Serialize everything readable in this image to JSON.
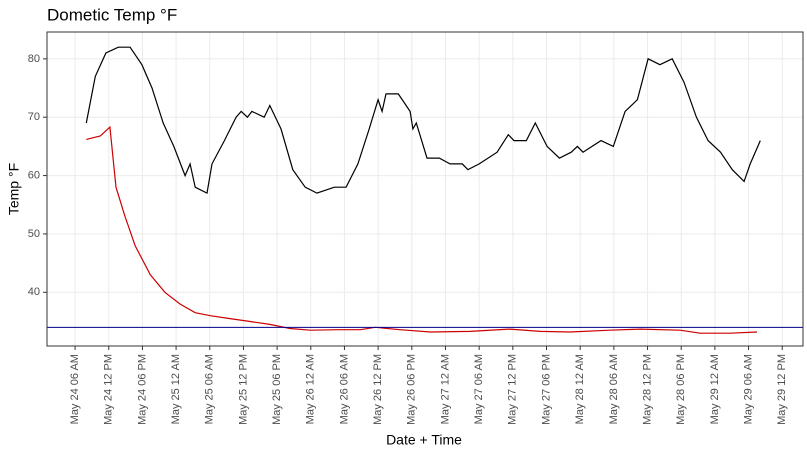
{
  "chart_data": {
    "type": "line",
    "title": "Dometic Temp °F",
    "x_label": "Date + Time",
    "y_label": "Temp °F",
    "xlim": [
      1.0,
      135.7
    ],
    "ylim": [
      30.8,
      84.6
    ],
    "xticks": [
      {
        "value": 6,
        "label": "May 24 06 AM"
      },
      {
        "value": 12,
        "label": "May 24 12 PM"
      },
      {
        "value": 18,
        "label": "May 24 06 PM"
      },
      {
        "value": 24,
        "label": "May 25 12 AM"
      },
      {
        "value": 30,
        "label": "May 25 06 AM"
      },
      {
        "value": 36,
        "label": "May 25 12 PM"
      },
      {
        "value": 42,
        "label": "May 25 06 PM"
      },
      {
        "value": 48,
        "label": "May 26 12 AM"
      },
      {
        "value": 54,
        "label": "May 26 06 AM"
      },
      {
        "value": 60,
        "label": "May 26 12 PM"
      },
      {
        "value": 66,
        "label": "May 26 06 PM"
      },
      {
        "value": 72,
        "label": "May 27 12 AM"
      },
      {
        "value": 78,
        "label": "May 27 06 AM"
      },
      {
        "value": 84,
        "label": "May 27 12 PM"
      },
      {
        "value": 90,
        "label": "May 27 06 PM"
      },
      {
        "value": 96,
        "label": "May 28 12 AM"
      },
      {
        "value": 102,
        "label": "May 28 06 AM"
      },
      {
        "value": 108,
        "label": "May 28 12 PM"
      },
      {
        "value": 114,
        "label": "May 28 06 PM"
      },
      {
        "value": 120,
        "label": "May 29 12 AM"
      },
      {
        "value": 126,
        "label": "May 29 06 AM"
      },
      {
        "value": 132,
        "label": "May 29 12 PM"
      }
    ],
    "yticks": [
      40,
      50,
      60,
      70,
      80
    ],
    "grid": true,
    "hline": {
      "value": 34,
      "color": "#00008b"
    },
    "series": [
      {
        "color": "#000000",
        "x": [
          8.0,
          9.6,
          11.5,
          13.7,
          15.8,
          17.9,
          19.7,
          21.7,
          23.6,
          25.6,
          26.5,
          27.4,
          29.5,
          30.4,
          32.6,
          34.7,
          35.6,
          36.7,
          37.5,
          39.7,
          40.7,
          42.7,
          44.8,
          47.0,
          49.1,
          52.2,
          54.3,
          56.4,
          58.4,
          60.0,
          60.7,
          61.4,
          63.6,
          65.7,
          66.2,
          66.8,
          68.7,
          70.9,
          72.8,
          75.0,
          76.0,
          78.0,
          81.2,
          83.2,
          84.2,
          86.4,
          88.0,
          90.1,
          92.3,
          94.4,
          95.5,
          96.5,
          99.7,
          101.9,
          104.0,
          106.2,
          108.1,
          110.2,
          112.4,
          114.5,
          116.7,
          118.8,
          121.0,
          123.1,
          125.2,
          126.3,
          128.1
        ],
        "values": [
          69,
          77,
          81,
          82,
          82,
          79,
          75,
          69,
          65,
          60,
          62,
          58,
          57,
          62,
          66,
          70,
          71,
          70,
          71,
          70,
          72,
          68,
          61,
          58,
          57,
          58,
          58,
          62,
          68,
          73,
          71,
          74,
          74,
          71,
          68,
          69,
          63,
          63,
          62,
          62,
          61,
          62,
          64,
          67,
          66,
          66,
          69,
          65,
          63,
          64,
          65,
          64,
          66,
          65,
          71,
          73,
          80,
          79,
          80,
          76,
          70,
          66,
          64,
          61,
          59,
          62,
          66
        ]
      },
      {
        "color": "#cc0000",
        "x": [
          8.0,
          10.5,
          12.2,
          13.3,
          14.9,
          16.7,
          19.4,
          22.0,
          24.7,
          27.4,
          30.1,
          33.6,
          37.2,
          40.7,
          44.3,
          47.9,
          53.2,
          56.8,
          59.5,
          63.9,
          69.3,
          76.4,
          83.5,
          88.9,
          94.2,
          101.3,
          106.7,
          113.8,
          117.4,
          122.7,
          127.5
        ],
        "values": [
          66.2,
          66.8,
          68.3,
          58,
          53,
          48,
          43,
          40,
          38,
          36.5,
          36,
          35.5,
          35,
          34.5,
          33.8,
          33.5,
          33.6,
          33.6,
          34,
          33.6,
          33.2,
          33.3,
          33.7,
          33.3,
          33.2,
          33.5,
          33.7,
          33.5,
          33.0,
          33.0,
          33.2
        ]
      }
    ]
  }
}
